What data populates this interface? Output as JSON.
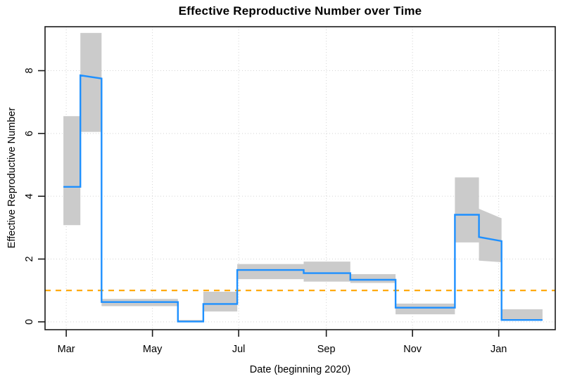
{
  "chart_data": {
    "type": "line",
    "subtype": "step-with-confidence-band",
    "title": "Effective Reproductive Number over Time",
    "xlabel": "Date (beginning 2020)",
    "ylabel": "Effective Reproductive Number",
    "grid": true,
    "legend_position": "none",
    "xlim": [
      "2020-02-15",
      "2021-02-10"
    ],
    "ylim": [
      -0.25,
      9.4
    ],
    "x_ticks": [
      {
        "label": "Mar",
        "date": "2020-03-01"
      },
      {
        "label": "May",
        "date": "2020-05-01"
      },
      {
        "label": "Jul",
        "date": "2020-07-01"
      },
      {
        "label": "Sep",
        "date": "2020-09-01"
      },
      {
        "label": "Nov",
        "date": "2020-11-01"
      },
      {
        "label": "Jan",
        "date": "2021-01-01"
      }
    ],
    "y_ticks": [
      0,
      2,
      4,
      6,
      8
    ],
    "threshold_line": {
      "value": 1,
      "style": "dashed",
      "color": "#FFA500"
    },
    "colors": {
      "line": "#1E90FF",
      "band": "#CBCBCB",
      "grid": "#D3D3D3",
      "axis": "#1a1a1a",
      "text": "#000000"
    },
    "segments": [
      {
        "start": "2020-02-28",
        "end": "2020-03-11",
        "r": 4.3,
        "ci": [
          3.08,
          6.55
        ]
      },
      {
        "start": "2020-03-11",
        "end": "2020-03-26",
        "r": 7.85,
        "r_end": 7.75,
        "ci": [
          6.05,
          9.2
        ]
      },
      {
        "start": "2020-03-26",
        "end": "2020-05-19",
        "r": 0.63,
        "ci": [
          0.5,
          0.73
        ]
      },
      {
        "start": "2020-05-19",
        "end": "2020-06-06",
        "r": 0.01,
        "ci": [
          0.0,
          0.06
        ]
      },
      {
        "start": "2020-06-06",
        "end": "2020-06-30",
        "r": 0.57,
        "ci": [
          0.33,
          0.96
        ]
      },
      {
        "start": "2020-06-30",
        "end": "2020-08-16",
        "r": 1.65,
        "ci": [
          1.36,
          1.84
        ]
      },
      {
        "start": "2020-08-16",
        "end": "2020-09-18",
        "r": 1.55,
        "ci": [
          1.28,
          1.92
        ]
      },
      {
        "start": "2020-09-18",
        "end": "2020-10-20",
        "r": 1.34,
        "ci": [
          1.24,
          1.52
        ]
      },
      {
        "start": "2020-10-20",
        "end": "2020-12-01",
        "r": 0.45,
        "ci": [
          0.24,
          0.58
        ]
      },
      {
        "start": "2020-12-01",
        "end": "2020-12-18",
        "r": 3.41,
        "ci": [
          2.53,
          4.6
        ]
      },
      {
        "start": "2020-12-18",
        "end": "2021-01-03",
        "r": 2.7,
        "r_end": 2.57,
        "ci": [
          1.95,
          3.6
        ],
        "ci_end": [
          1.9,
          3.3
        ]
      },
      {
        "start": "2021-01-03",
        "end": "2021-02-01",
        "r": 0.06,
        "ci": [
          0.04,
          0.4
        ]
      }
    ]
  }
}
